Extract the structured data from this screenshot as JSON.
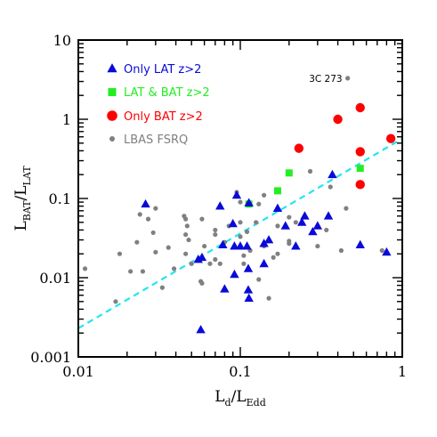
{
  "chart_data": {
    "type": "scatter",
    "xlabel": {
      "main": "L",
      "sub1": "d",
      "sep": "/L",
      "sub2": "Edd"
    },
    "ylabel": {
      "main": "L",
      "sub1": "BAT",
      "sep": "/L",
      "sub2": "LAT"
    },
    "xscale": "log",
    "yscale": "log",
    "xlim": [
      0.01,
      1
    ],
    "ylim": [
      0.001,
      10
    ],
    "xticks": [
      {
        "value": 0.01,
        "label": "0.01"
      },
      {
        "value": 0.1,
        "label": "0.1"
      },
      {
        "value": 1,
        "label": "1"
      }
    ],
    "yticks": [
      {
        "value": 0.001,
        "label": "0.001"
      },
      {
        "value": 0.01,
        "label": "0.01"
      },
      {
        "value": 0.1,
        "label": "0.1"
      },
      {
        "value": 1,
        "label": "1"
      },
      {
        "value": 10,
        "label": "10"
      }
    ],
    "grid": false,
    "legend_position": "top-left",
    "annotations": [
      {
        "text": "3C 273",
        "x": 0.46,
        "y": 3.3
      }
    ],
    "fit_line": {
      "style": "dashed",
      "color": "#22e5f0",
      "x": [
        0.01,
        1
      ],
      "y": [
        0.0023,
        0.57
      ]
    },
    "series": [
      {
        "name": "Only LAT z>2",
        "marker": "triangle",
        "color": "#0a0ad8",
        "points": [
          [
            0.026,
            0.085
          ],
          [
            0.055,
            0.017
          ],
          [
            0.058,
            0.018
          ],
          [
            0.057,
            0.0022
          ],
          [
            0.075,
            0.08
          ],
          [
            0.078,
            0.026
          ],
          [
            0.08,
            0.0072
          ],
          [
            0.09,
            0.048
          ],
          [
            0.092,
            0.025
          ],
          [
            0.092,
            0.011
          ],
          [
            0.095,
            0.11
          ],
          [
            0.1,
            0.025
          ],
          [
            0.11,
            0.025
          ],
          [
            0.112,
            0.013
          ],
          [
            0.112,
            0.007
          ],
          [
            0.113,
            0.0055
          ],
          [
            0.113,
            0.088
          ],
          [
            0.14,
            0.015
          ],
          [
            0.14,
            0.027
          ],
          [
            0.15,
            0.03
          ],
          [
            0.17,
            0.075
          ],
          [
            0.19,
            0.045
          ],
          [
            0.22,
            0.025
          ],
          [
            0.24,
            0.05
          ],
          [
            0.25,
            0.06
          ],
          [
            0.28,
            0.038
          ],
          [
            0.3,
            0.045
          ],
          [
            0.35,
            0.06
          ],
          [
            0.37,
            0.2
          ],
          [
            0.55,
            0.026
          ],
          [
            0.8,
            0.021
          ]
        ]
      },
      {
        "name": "LAT & BAT z>2",
        "marker": "square",
        "color": "#22ee22",
        "points": [
          [
            0.113,
            0.085
          ],
          [
            0.17,
            0.125
          ],
          [
            0.2,
            0.21
          ],
          [
            0.55,
            0.24
          ]
        ]
      },
      {
        "name": "Only BAT z>2",
        "marker": "circle",
        "color": "#ff0000",
        "points": [
          [
            0.23,
            0.43
          ],
          [
            0.4,
            1.0
          ],
          [
            0.55,
            1.4
          ],
          [
            0.55,
            0.39
          ],
          [
            0.55,
            0.15
          ],
          [
            0.85,
            0.57
          ]
        ]
      },
      {
        "name": "LBAS FSRQ",
        "marker": "dot",
        "color": "#808080",
        "points": [
          [
            0.011,
            0.013
          ],
          [
            0.017,
            0.005
          ],
          [
            0.018,
            0.02
          ],
          [
            0.021,
            0.012
          ],
          [
            0.023,
            0.028
          ],
          [
            0.024,
            0.063
          ],
          [
            0.025,
            0.012
          ],
          [
            0.027,
            0.055
          ],
          [
            0.029,
            0.037
          ],
          [
            0.03,
            0.075
          ],
          [
            0.03,
            0.021
          ],
          [
            0.033,
            0.0075
          ],
          [
            0.036,
            0.024
          ],
          [
            0.039,
            0.013
          ],
          [
            0.045,
            0.06
          ],
          [
            0.046,
            0.055
          ],
          [
            0.047,
            0.045
          ],
          [
            0.046,
            0.035
          ],
          [
            0.048,
            0.03
          ],
          [
            0.046,
            0.02
          ],
          [
            0.05,
            0.015
          ],
          [
            0.058,
            0.055
          ],
          [
            0.057,
            0.009
          ],
          [
            0.058,
            0.0085
          ],
          [
            0.06,
            0.025
          ],
          [
            0.065,
            0.015
          ],
          [
            0.07,
            0.04
          ],
          [
            0.07,
            0.035
          ],
          [
            0.07,
            0.017
          ],
          [
            0.075,
            0.015
          ],
          [
            0.08,
            0.028
          ],
          [
            0.085,
            0.045
          ],
          [
            0.095,
            0.12
          ],
          [
            0.1,
            0.09
          ],
          [
            0.1,
            0.05
          ],
          [
            0.1,
            0.033
          ],
          [
            0.105,
            0.019
          ],
          [
            0.105,
            0.015
          ],
          [
            0.11,
            0.038
          ],
          [
            0.115,
            0.022
          ],
          [
            0.125,
            0.05
          ],
          [
            0.13,
            0.085
          ],
          [
            0.13,
            0.0095
          ],
          [
            0.14,
            0.11
          ],
          [
            0.14,
            0.025
          ],
          [
            0.15,
            0.0055
          ],
          [
            0.16,
            0.018
          ],
          [
            0.17,
            0.045
          ],
          [
            0.17,
            0.02
          ],
          [
            0.2,
            0.058
          ],
          [
            0.2,
            0.029
          ],
          [
            0.2,
            0.027
          ],
          [
            0.22,
            0.05
          ],
          [
            0.27,
            0.22
          ],
          [
            0.3,
            0.025
          ],
          [
            0.34,
            0.04
          ],
          [
            0.36,
            0.14
          ],
          [
            0.42,
            0.022
          ],
          [
            0.45,
            0.075
          ],
          [
            0.75,
            0.022
          ],
          [
            0.46,
            3.3
          ]
        ]
      }
    ]
  }
}
